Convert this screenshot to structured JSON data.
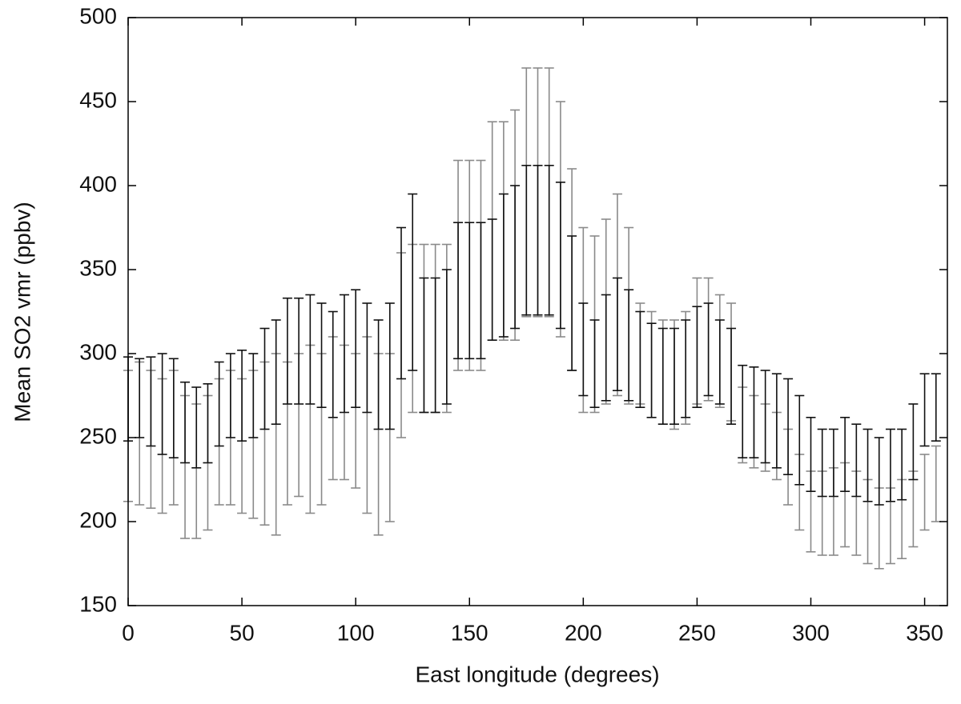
{
  "chart_data": {
    "type": "errorbar",
    "xlabel": "East longitude (degrees)",
    "ylabel": "Mean SO2 vmr (ppbv)",
    "xlim": [
      0,
      360
    ],
    "xticks": [
      0,
      50,
      100,
      150,
      200,
      250,
      300,
      350
    ],
    "ylim": [
      150,
      500
    ],
    "yticks": [
      150,
      200,
      250,
      300,
      350,
      400,
      450,
      500
    ],
    "x": [
      0,
      5,
      10,
      15,
      20,
      25,
      30,
      35,
      40,
      45,
      50,
      55,
      60,
      65,
      70,
      75,
      80,
      85,
      90,
      95,
      100,
      105,
      110,
      115,
      120,
      125,
      130,
      135,
      140,
      145,
      150,
      155,
      160,
      165,
      170,
      175,
      180,
      185,
      190,
      195,
      200,
      205,
      210,
      215,
      220,
      225,
      230,
      235,
      240,
      245,
      250,
      255,
      260,
      265,
      270,
      275,
      280,
      285,
      290,
      295,
      300,
      305,
      310,
      315,
      320,
      325,
      330,
      335,
      340,
      345,
      350,
      355
    ],
    "series": [
      {
        "color": "#8a8a8a",
        "values": [
          251,
          252.5,
          249,
          245,
          250,
          232.5,
          230,
          235,
          247.5,
          250,
          245,
          246,
          246.5,
          246,
          252.5,
          257.5,
          255,
          255,
          267.5,
          265,
          260,
          257.5,
          246,
          250,
          305,
          315,
          315,
          315,
          315,
          352.5,
          352.5,
          352.5,
          373,
          373,
          376.5,
          396,
          396,
          396,
          380,
          350,
          320,
          317.5,
          325,
          335,
          322.5,
          300,
          293.5,
          289,
          287.5,
          291.5,
          307.5,
          308.5,
          301.5,
          295,
          257.5,
          253.5,
          250,
          245,
          232.5,
          217.5,
          206,
          205,
          206,
          210,
          205,
          200,
          196,
          197.5,
          201.5,
          207.5,
          217.5,
          222.5
        ],
        "errors": [
          39,
          42.5,
          41,
          40,
          40,
          42.5,
          40,
          40,
          37.5,
          40,
          40,
          44,
          48.5,
          54,
          42.5,
          42.5,
          50,
          45,
          42.5,
          40,
          40,
          52.5,
          54,
          50,
          55,
          50,
          50,
          50,
          50,
          62.5,
          62.5,
          62.5,
          65,
          65,
          68.5,
          74,
          74,
          74,
          70,
          60,
          55,
          52.5,
          55,
          60,
          52.5,
          30,
          31.5,
          31,
          32.5,
          33.5,
          37.5,
          36.5,
          33.5,
          35,
          22.5,
          21.5,
          20,
          20,
          22.5,
          22.5,
          24,
          25,
          26,
          25,
          25,
          25,
          24,
          22.5,
          23.5,
          22.5,
          22.5,
          22.5
        ]
      },
      {
        "color": "#111111",
        "values": [
          273,
          273.5,
          271.5,
          270,
          267.5,
          259,
          256,
          258.5,
          270,
          275,
          275,
          275,
          285,
          289,
          301.5,
          301.5,
          302.5,
          299,
          293.5,
          300,
          303,
          297.5,
          287.5,
          292.5,
          330,
          342.5,
          305,
          305,
          310,
          337.5,
          337.5,
          337.5,
          344,
          352.5,
          357.5,
          367.5,
          367.5,
          367.5,
          358.5,
          330,
          302.5,
          294,
          303.5,
          311.5,
          305,
          296.5,
          290,
          286.5,
          286.5,
          291,
          298,
          302.5,
          295,
          286.5,
          265.5,
          265,
          262.5,
          260,
          256.5,
          248.5,
          240,
          235,
          235,
          240,
          236.5,
          233.5,
          230,
          233.5,
          234,
          247.5,
          266.5,
          268
        ],
        "errors": [
          25,
          23.5,
          26.5,
          30,
          29.5,
          24,
          24,
          23.5,
          25,
          25,
          27,
          25,
          30,
          31,
          31.5,
          31.5,
          32.5,
          31,
          31.5,
          35,
          35,
          32.5,
          32.5,
          37.5,
          45,
          52.5,
          40,
          40,
          40,
          40.5,
          40.5,
          40.5,
          36,
          42.5,
          42.5,
          44.5,
          44.5,
          44.5,
          43.5,
          40,
          27.5,
          26,
          31.5,
          33.5,
          33,
          28.5,
          28,
          28.5,
          28.5,
          29,
          30,
          27.5,
          25,
          28.5,
          27.5,
          27,
          27.5,
          28,
          28.5,
          26.5,
          22,
          20,
          20,
          22,
          21.5,
          21.5,
          20,
          21.5,
          21,
          22.5,
          21.5,
          20
        ]
      }
    ]
  }
}
